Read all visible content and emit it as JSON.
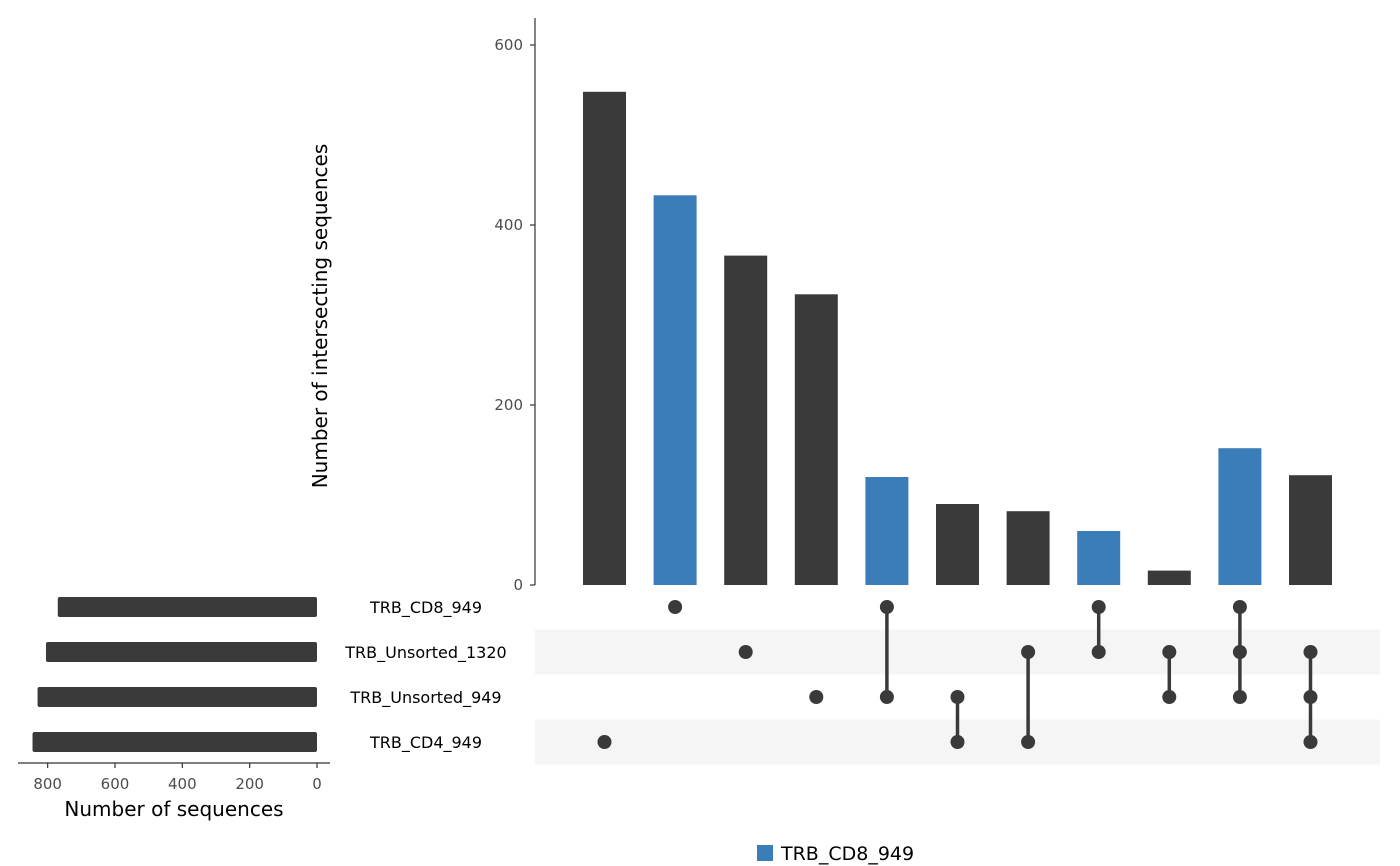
{
  "chart_data": {
    "type": "bar",
    "title": "",
    "intersection_axis": {
      "ylabel": "Number of intersecting sequences",
      "ylim": [
        0,
        630
      ],
      "ticks": [
        0,
        200,
        400,
        600
      ]
    },
    "set_size_axis": {
      "xlabel": "Number of sequences",
      "xlim": [
        880,
        0
      ],
      "ticks": [
        800,
        600,
        400,
        200,
        0
      ]
    },
    "sets": [
      {
        "name": "TRB_CD8_949",
        "size": 770
      },
      {
        "name": "TRB_Unsorted_1320",
        "size": 805
      },
      {
        "name": "TRB_Unsorted_949",
        "size": 830
      },
      {
        "name": "TRB_CD4_949",
        "size": 845
      }
    ],
    "intersections": [
      {
        "sets": [
          "TRB_CD4_949"
        ],
        "value": 548,
        "highlighted": false
      },
      {
        "sets": [
          "TRB_CD8_949"
        ],
        "value": 433,
        "highlighted": true
      },
      {
        "sets": [
          "TRB_Unsorted_1320"
        ],
        "value": 366,
        "highlighted": false
      },
      {
        "sets": [
          "TRB_Unsorted_949"
        ],
        "value": 323,
        "highlighted": false
      },
      {
        "sets": [
          "TRB_CD8_949",
          "TRB_Unsorted_949"
        ],
        "value": 120,
        "highlighted": true
      },
      {
        "sets": [
          "TRB_Unsorted_949",
          "TRB_CD4_949"
        ],
        "value": 90,
        "highlighted": false
      },
      {
        "sets": [
          "TRB_Unsorted_1320",
          "TRB_CD4_949"
        ],
        "value": 82,
        "highlighted": false
      },
      {
        "sets": [
          "TRB_CD8_949",
          "TRB_Unsorted_1320"
        ],
        "value": 60,
        "highlighted": true
      },
      {
        "sets": [
          "TRB_Unsorted_1320",
          "TRB_Unsorted_949"
        ],
        "value": 16,
        "highlighted": false
      },
      {
        "sets": [
          "TRB_CD8_949",
          "TRB_Unsorted_1320",
          "TRB_Unsorted_949"
        ],
        "value": 152,
        "highlighted": true
      },
      {
        "sets": [
          "TRB_Unsorted_1320",
          "TRB_Unsorted_949",
          "TRB_CD4_949"
        ],
        "value": 122,
        "highlighted": false
      }
    ],
    "legend": {
      "label": "TRB_CD8_949",
      "placement": "bottom"
    },
    "colors": {
      "default": "#3a3a3a",
      "highlight": "#3a7db8",
      "stripe": "#f5f5f5",
      "axis": "#333333"
    }
  }
}
